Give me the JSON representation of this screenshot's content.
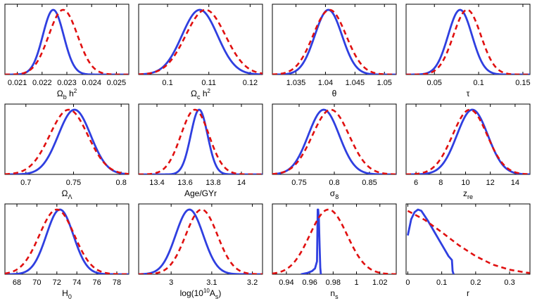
{
  "colors": {
    "solid": "#2f3fe0",
    "dashed": "#e01010",
    "axis": "#000000"
  },
  "chart_data": [
    {
      "type": "line",
      "xlabel": [
        "Ω",
        {
          "sub": "b"
        },
        " h",
        {
          "sup": "2"
        }
      ],
      "xticks": [
        0.021,
        0.022,
        0.023,
        0.024,
        0.025
      ],
      "xtick_labels": [
        "0.021",
        "0.022",
        "0.023",
        "0.024",
        "0.025"
      ],
      "xlim": [
        0.0205,
        0.0255
      ],
      "grid": false,
      "series": [
        {
          "style": "solid",
          "color": "#2f3fe0",
          "shape": "gaussian",
          "peak_x": 0.02245,
          "width": 0.00042
        },
        {
          "style": "dashed",
          "color": "#e01010",
          "shape": "gaussian",
          "peak_x": 0.02285,
          "width": 0.00058
        }
      ]
    },
    {
      "type": "line",
      "xlabel": [
        "Ω",
        {
          "sub": "c"
        },
        " h",
        {
          "sup": "2"
        }
      ],
      "xticks": [
        0.1,
        0.11,
        0.12
      ],
      "xtick_labels": [
        "0.1",
        "0.11",
        "0.12"
      ],
      "xlim": [
        0.093,
        0.123
      ],
      "grid": false,
      "series": [
        {
          "style": "solid",
          "color": "#2f3fe0",
          "shape": "gaussian",
          "peak_x": 0.1078,
          "width": 0.0043
        },
        {
          "style": "dashed",
          "color": "#e01010",
          "shape": "gaussian",
          "peak_x": 0.1092,
          "width": 0.0048
        }
      ]
    },
    {
      "type": "line",
      "xlabel": [
        "θ"
      ],
      "xticks": [
        1.035,
        1.04,
        1.045,
        1.05
      ],
      "xtick_labels": [
        "1.035",
        "1.04",
        "1.045",
        "1.05"
      ],
      "xlim": [
        1.031,
        1.052
      ],
      "grid": false,
      "series": [
        {
          "style": "solid",
          "color": "#2f3fe0",
          "shape": "gaussian",
          "peak_x": 1.0405,
          "width": 0.0023
        },
        {
          "style": "dashed",
          "color": "#e01010",
          "shape": "gaussian",
          "peak_x": 1.0407,
          "width": 0.0028
        }
      ]
    },
    {
      "type": "line",
      "xlabel": [
        "τ"
      ],
      "xticks": [
        0.05,
        0.1,
        0.15
      ],
      "xtick_labels": [
        "0.05",
        "0.1",
        "0.15"
      ],
      "xlim": [
        0.018,
        0.158
      ],
      "grid": false,
      "series": [
        {
          "style": "solid",
          "color": "#2f3fe0",
          "shape": "gaussian",
          "peak_x": 0.079,
          "width": 0.0135
        },
        {
          "style": "dashed",
          "color": "#e01010",
          "shape": "gaussian",
          "peak_x": 0.087,
          "width": 0.0155
        }
      ]
    },
    {
      "type": "line",
      "xlabel": [
        "Ω",
        {
          "sub": "Λ"
        }
      ],
      "xticks": [
        0.7,
        0.75,
        0.8
      ],
      "xtick_labels": [
        "0.7",
        "0.75",
        "0.8"
      ],
      "xlim": [
        0.678,
        0.808
      ],
      "grid": false,
      "series": [
        {
          "style": "solid",
          "color": "#2f3fe0",
          "shape": "gaussian",
          "peak_x": 0.751,
          "width": 0.017
        },
        {
          "style": "dashed",
          "color": "#e01010",
          "shape": "gaussian",
          "peak_x": 0.745,
          "width": 0.02
        }
      ]
    },
    {
      "type": "line",
      "xlabel": [
        "Age/GYr"
      ],
      "xticks": [
        13.4,
        13.6,
        13.8,
        14
      ],
      "xtick_labels": [
        "13.4",
        "13.6",
        "13.8",
        "14"
      ],
      "xlim": [
        13.27,
        14.15
      ],
      "grid": false,
      "series": [
        {
          "style": "solid",
          "color": "#2f3fe0",
          "shape": "gaussian",
          "peak_x": 13.7,
          "width": 0.06
        },
        {
          "style": "dashed",
          "color": "#e01010",
          "shape": "gaussian",
          "peak_x": 13.67,
          "width": 0.1
        }
      ]
    },
    {
      "type": "line",
      "xlabel": [
        "σ",
        {
          "sub": "8"
        }
      ],
      "xticks": [
        0.75,
        0.8,
        0.85
      ],
      "xtick_labels": [
        "0.75",
        "0.8",
        "0.85"
      ],
      "xlim": [
        0.712,
        0.888
      ],
      "grid": false,
      "series": [
        {
          "style": "solid",
          "color": "#2f3fe0",
          "shape": "gaussian",
          "peak_x": 0.785,
          "width": 0.022
        },
        {
          "style": "dashed",
          "color": "#e01010",
          "shape": "gaussian",
          "peak_x": 0.795,
          "width": 0.026
        }
      ]
    },
    {
      "type": "line",
      "xlabel": [
        "z",
        {
          "sub": "re"
        }
      ],
      "xticks": [
        6,
        8,
        10,
        12,
        14
      ],
      "xtick_labels": [
        "6",
        "8",
        "10",
        "12",
        "14"
      ],
      "xlim": [
        5.2,
        15.2
      ],
      "grid": false,
      "series": [
        {
          "style": "solid",
          "color": "#2f3fe0",
          "shape": "gaussian",
          "peak_x": 10.55,
          "width": 1.25
        },
        {
          "style": "dashed",
          "color": "#e01010",
          "shape": "gaussian",
          "peak_x": 10.35,
          "width": 1.4
        }
      ]
    },
    {
      "type": "line",
      "xlabel": [
        "H",
        {
          "sub": "0"
        }
      ],
      "xticks": [
        68,
        70,
        72,
        74,
        76,
        78
      ],
      "xtick_labels": [
        "68",
        "70",
        "72",
        "74",
        "76",
        "78"
      ],
      "xlim": [
        66.8,
        79.2
      ],
      "grid": false,
      "series": [
        {
          "style": "solid",
          "color": "#2f3fe0",
          "shape": "gaussian",
          "peak_x": 72.3,
          "width": 1.35
        },
        {
          "style": "dashed",
          "color": "#e01010",
          "shape": "gaussian",
          "peak_x": 72.0,
          "width": 1.75
        }
      ]
    },
    {
      "type": "line",
      "xlabel": [
        "log(10",
        {
          "sup": "10"
        },
        "A",
        {
          "sub": "s"
        },
        ")"
      ],
      "xticks": [
        3,
        3.1,
        3.2
      ],
      "xtick_labels": [
        "3",
        "3.1",
        "3.2"
      ],
      "xlim": [
        2.92,
        3.225
      ],
      "grid": false,
      "series": [
        {
          "style": "solid",
          "color": "#2f3fe0",
          "shape": "gaussian",
          "peak_x": 3.045,
          "width": 0.034
        },
        {
          "style": "dashed",
          "color": "#e01010",
          "shape": "gaussian",
          "peak_x": 3.075,
          "width": 0.039
        }
      ]
    },
    {
      "type": "line",
      "xlabel": [
        "n",
        {
          "sub": "s"
        }
      ],
      "xticks": [
        0.94,
        0.96,
        0.98,
        1,
        1.02
      ],
      "xtick_labels": [
        "0.94",
        "0.96",
        "0.98",
        "1",
        "1.02"
      ],
      "xlim": [
        0.928,
        1.034
      ],
      "grid": false,
      "series": [
        {
          "style": "solid",
          "color": "#2f3fe0",
          "shape": "points",
          "x": [
            0.9525,
            0.958,
            0.962,
            0.9645,
            0.9662,
            0.9668,
            0.9672,
            0.9678,
            0.9684,
            0.969,
            0.9695
          ],
          "y": [
            0.0,
            0.02,
            0.05,
            0.09,
            0.2,
            1.0,
            1.0,
            0.85,
            0.45,
            0.1,
            0.0
          ]
        },
        {
          "style": "dashed",
          "color": "#e01010",
          "shape": "gaussian",
          "peak_x": 0.976,
          "width": 0.016
        }
      ]
    },
    {
      "type": "line",
      "xlabel": [
        "r"
      ],
      "xticks": [
        0,
        0.1,
        0.2,
        0.3
      ],
      "xtick_labels": [
        "0",
        "0.1",
        "0.2",
        "0.3"
      ],
      "xlim": [
        -0.005,
        0.36
      ],
      "grid": false,
      "series": [
        {
          "style": "solid",
          "color": "#2f3fe0",
          "shape": "points",
          "x": [
            0.0,
            0.01,
            0.02,
            0.03,
            0.04,
            0.05,
            0.06,
            0.07,
            0.08,
            0.09,
            0.1,
            0.11,
            0.12,
            0.13,
            0.131,
            0.132,
            0.135
          ],
          "y": [
            0.6,
            0.85,
            0.96,
            1.0,
            0.98,
            0.9,
            0.82,
            0.73,
            0.64,
            0.55,
            0.46,
            0.37,
            0.28,
            0.22,
            0.14,
            0.05,
            0.0
          ]
        },
        {
          "style": "dashed",
          "color": "#e01010",
          "shape": "points",
          "x": [
            0.0,
            0.05,
            0.1,
            0.15,
            0.2,
            0.25,
            0.3,
            0.35,
            0.36
          ],
          "y": [
            0.98,
            0.84,
            0.65,
            0.45,
            0.28,
            0.15,
            0.07,
            0.025,
            0.02
          ]
        }
      ]
    }
  ]
}
